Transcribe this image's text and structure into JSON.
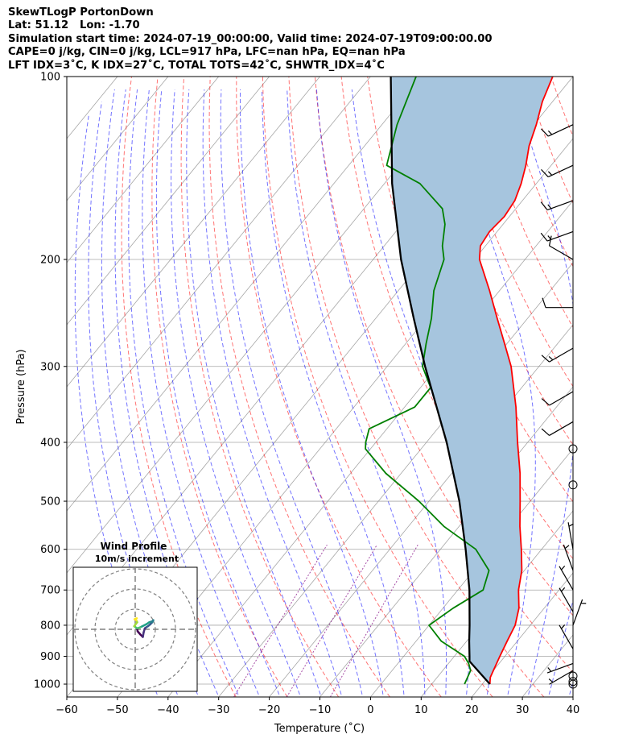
{
  "header": {
    "line1": "SkewTLogP PortonDown",
    "line2": "Lat: 51.12   Lon: -1.70",
    "line3": "Simulation start time: 2024-07-19_00:00:00, Valid time: 2024-07-19T09:00:00.00",
    "line4": "CAPE=0 j/kg, CIN=0 j/kg, LCL=917 hPa, LFC=nan hPa, EQ=nan hPa",
    "line5": "LFT IDX=3˚C, K IDX=27˚C, TOTAL TOTS=42˚C, SHWTR_IDX=4˚C"
  },
  "chart_data": {
    "type": "line",
    "xlabel": "Temperature (˚C)",
    "ylabel": "Pressure (hPa)",
    "xlim": [
      -60,
      40
    ],
    "ylim": [
      1050,
      100
    ],
    "yscale": "log",
    "x_ticks": [
      -60,
      -50,
      -40,
      -30,
      -20,
      -10,
      0,
      10,
      20,
      30,
      40
    ],
    "x_tick_labels": [
      "−60",
      "−50",
      "−40",
      "−30",
      "−20",
      "−10",
      "0",
      "10",
      "20",
      "30",
      "40"
    ],
    "y_ticks": [
      1000,
      900,
      800,
      700,
      600,
      500,
      400,
      300,
      200,
      100
    ],
    "y_tick_labels": [
      "1000",
      "900",
      "800",
      "700",
      "600",
      "500",
      "400",
      "300",
      "200",
      "100"
    ],
    "grid": true,
    "series": [
      {
        "role": "temperature",
        "color": "#ff0000",
        "points": [
          [
            1000,
            21.5
          ],
          [
            975,
            20.5
          ],
          [
            950,
            20.0
          ],
          [
            925,
            19.5
          ],
          [
            900,
            19.0
          ],
          [
            850,
            18.0
          ],
          [
            800,
            17.0
          ],
          [
            750,
            15.0
          ],
          [
            700,
            12.0
          ],
          [
            650,
            9.5
          ],
          [
            600,
            6.0
          ],
          [
            550,
            2.0
          ],
          [
            500,
            -2.0
          ],
          [
            450,
            -6.5
          ],
          [
            400,
            -12.0
          ],
          [
            350,
            -18.0
          ],
          [
            300,
            -25.5
          ],
          [
            275,
            -30.5
          ],
          [
            250,
            -36.0
          ],
          [
            225,
            -42.0
          ],
          [
            200,
            -49.0
          ],
          [
            190,
            -51.0
          ],
          [
            180,
            -51.5
          ],
          [
            170,
            -51.0
          ],
          [
            160,
            -51.5
          ],
          [
            150,
            -53.0
          ],
          [
            140,
            -55.0
          ],
          [
            130,
            -57.5
          ],
          [
            120,
            -59.5
          ],
          [
            110,
            -62.0
          ],
          [
            100,
            -64.0
          ]
        ]
      },
      {
        "role": "dewpoint",
        "color": "#008000",
        "points": [
          [
            1000,
            16.5
          ],
          [
            975,
            16.0
          ],
          [
            950,
            15.5
          ],
          [
            925,
            14.0
          ],
          [
            900,
            12.0
          ],
          [
            850,
            5.0
          ],
          [
            800,
            0.0
          ],
          [
            750,
            2.0
          ],
          [
            700,
            5.0
          ],
          [
            650,
            3.0
          ],
          [
            600,
            -3.0
          ],
          [
            550,
            -13.0
          ],
          [
            500,
            -22.0
          ],
          [
            450,
            -33.0
          ],
          [
            410,
            -41.0
          ],
          [
            400,
            -42.0
          ],
          [
            380,
            -43.5
          ],
          [
            350,
            -38.0
          ],
          [
            325,
            -38.0
          ],
          [
            300,
            -43.0
          ],
          [
            275,
            -46.0
          ],
          [
            250,
            -49.0
          ],
          [
            225,
            -53.0
          ],
          [
            200,
            -56.0
          ],
          [
            190,
            -58.5
          ],
          [
            175,
            -61.5
          ],
          [
            165,
            -64.5
          ],
          [
            150,
            -73.0
          ],
          [
            140,
            -82.5
          ],
          [
            120,
            -87.0
          ],
          [
            100,
            -91.0
          ]
        ]
      },
      {
        "role": "parcel",
        "color": "#000000",
        "points": [
          [
            1000,
            21.5
          ],
          [
            917,
            13.8
          ],
          [
            900,
            13.0
          ],
          [
            850,
            10.5
          ],
          [
            800,
            8.0
          ],
          [
            700,
            2.3
          ],
          [
            600,
            -5.0
          ],
          [
            500,
            -14.0
          ],
          [
            400,
            -26.0
          ],
          [
            300,
            -42.5
          ],
          [
            250,
            -52.5
          ],
          [
            200,
            -64.5
          ],
          [
            150,
            -78.5
          ],
          [
            100,
            -96.0
          ]
        ]
      }
    ],
    "shading_between": [
      "temperature",
      "parcel"
    ],
    "shading_color": "#a6c5de",
    "wind_barbs": [
      {
        "p": 1000,
        "speed_kt": 0
      },
      {
        "p": 990,
        "speed_kt": 0
      },
      {
        "p": 970,
        "speed_kt": 0
      },
      {
        "p": 950,
        "speed_kt": 5,
        "dir": 240
      },
      {
        "p": 925,
        "speed_kt": 5,
        "dir": 250
      },
      {
        "p": 875,
        "speed_kt": 5,
        "dir": 330
      },
      {
        "p": 800,
        "speed_kt": 5,
        "dir": 20
      },
      {
        "p": 760,
        "speed_kt": 5,
        "dir": 330
      },
      {
        "p": 700,
        "speed_kt": 5,
        "dir": 330
      },
      {
        "p": 650,
        "speed_kt": 5,
        "dir": 340
      },
      {
        "p": 600,
        "speed_kt": 5,
        "dir": 350
      },
      {
        "p": 470,
        "speed_kt": 0
      },
      {
        "p": 410,
        "speed_kt": 0
      },
      {
        "p": 370,
        "speed_kt": 10,
        "dir": 240
      },
      {
        "p": 330,
        "speed_kt": 10,
        "dir": 240
      },
      {
        "p": 280,
        "speed_kt": 15,
        "dir": 240
      },
      {
        "p": 240,
        "speed_kt": 10,
        "dir": 270
      },
      {
        "p": 200,
        "speed_kt": 10,
        "dir": 300
      },
      {
        "p": 180,
        "speed_kt": 15,
        "dir": 250
      },
      {
        "p": 160,
        "speed_kt": 15,
        "dir": 250
      },
      {
        "p": 140,
        "speed_kt": 15,
        "dir": 245
      },
      {
        "p": 120,
        "speed_kt": 15,
        "dir": 245
      }
    ],
    "hodograph": {
      "title": "Wind Profile",
      "subtitle": "10m/s increment",
      "rings_ms": [
        10,
        20,
        30
      ],
      "trace_uv": [
        [
          1.0,
          0.0
        ],
        [
          1.2,
          -1.0
        ],
        [
          2.5,
          -2.5
        ],
        [
          3.8,
          -3.8
        ],
        [
          4.2,
          -1.5
        ],
        [
          4.8,
          0.5
        ],
        [
          5.5,
          1.0
        ],
        [
          6.3,
          1.5
        ],
        [
          7.5,
          2.5
        ],
        [
          8.5,
          3.5
        ],
        [
          9.0,
          4.5
        ],
        [
          8.5,
          4.0
        ],
        [
          7.0,
          3.5
        ],
        [
          5.5,
          2.5
        ],
        [
          3.5,
          1.5
        ],
        [
          2.5,
          1.0
        ],
        [
          1.0,
          0.5
        ],
        [
          0.2,
          1.0
        ],
        [
          -0.5,
          1.5
        ],
        [
          0.2,
          2.5
        ],
        [
          1.0,
          3.5
        ],
        [
          0.5,
          4.5
        ],
        [
          -0.3,
          5.0
        ],
        [
          0.8,
          5.5
        ]
      ]
    },
    "colors": {
      "temperature": "#ff0000",
      "dewpoint": "#008000",
      "parcel": "#000000",
      "dry_adiabat": "#ff0000",
      "moist_adiabat": "#0000ff",
      "mixing_ratio": "#800080",
      "isotherm": "#808080",
      "isobar": "#808080",
      "shading": "#a6c5de"
    }
  }
}
